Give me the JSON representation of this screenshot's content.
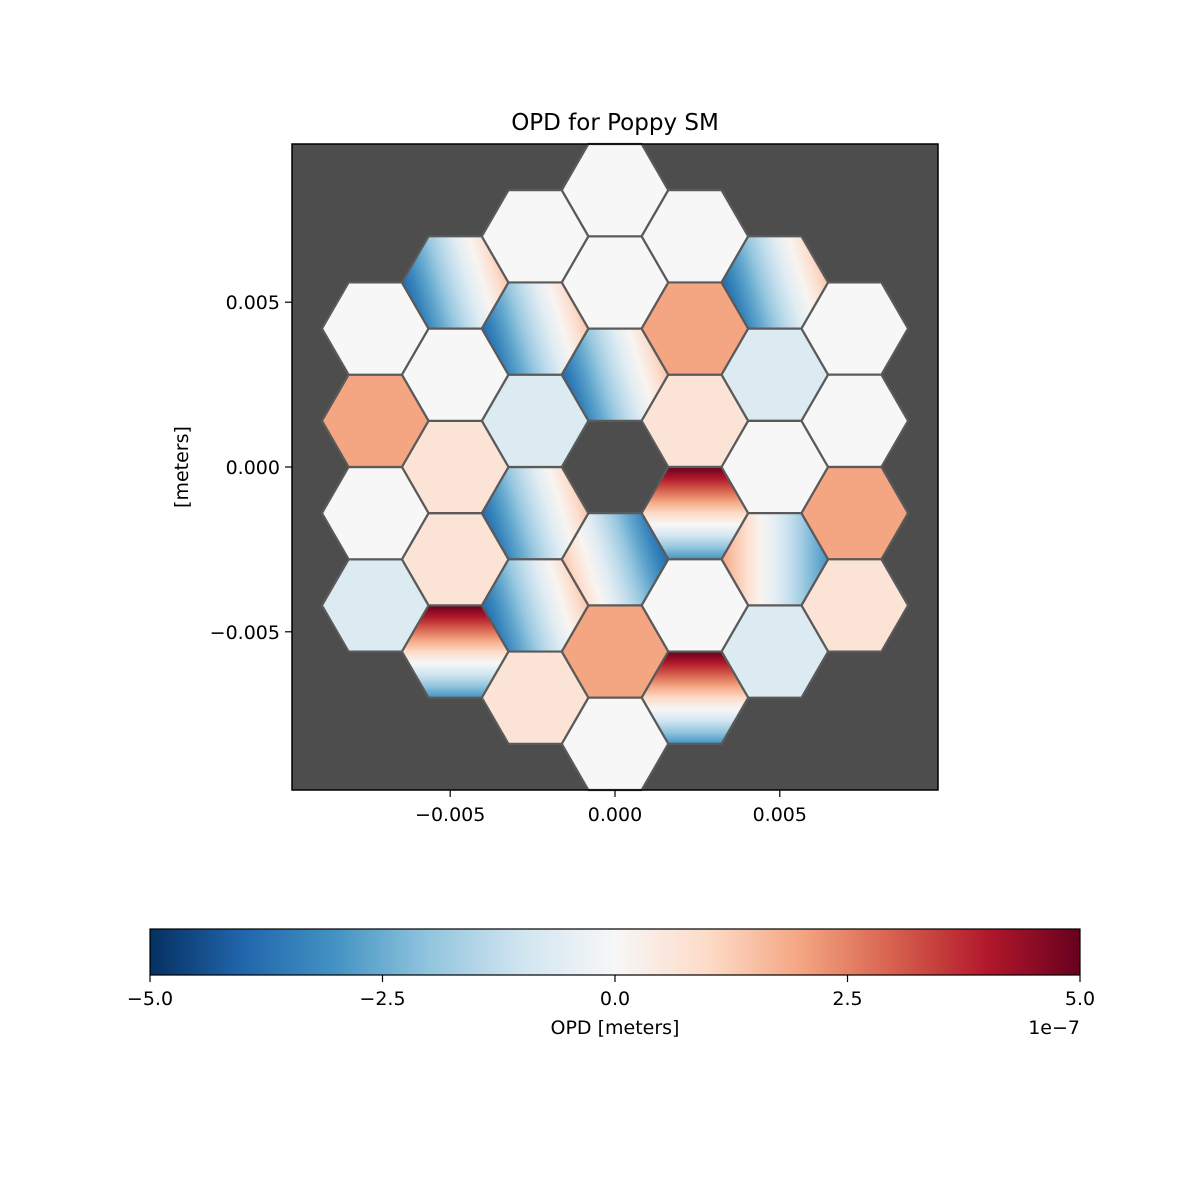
{
  "chart_data": {
    "type": "heatmap",
    "title": "OPD for Poppy SM",
    "xlabel": "",
    "ylabel": "[meters]",
    "xlim": [
      -0.0098,
      0.0098
    ],
    "ylim": [
      -0.0098,
      0.0098
    ],
    "x_ticks": [
      -0.005,
      0.0,
      0.005
    ],
    "y_ticks": [
      0.005,
      0.0,
      -0.005
    ],
    "x_tick_labels": [
      "−0.005",
      "0.000",
      "0.005"
    ],
    "y_tick_labels": [
      "0.005",
      "0.000",
      "−0.005"
    ],
    "background_color": "#4d4d4d",
    "segment_edge_color": "#5a5a5a",
    "colormap": "RdBu_r",
    "colorbar": {
      "label": "OPD [meters]",
      "range": [
        -5e-07,
        5e-07
      ],
      "ticks": [
        -5e-07,
        -2.5e-07,
        0,
        2.5e-07,
        5e-07
      ],
      "tick_labels": [
        "−5.0",
        "−2.5",
        "0.0",
        "2.5",
        "5.0"
      ],
      "offset_text": "1e−7",
      "orientation": "horizontal",
      "placement": "bottom"
    },
    "segment_geometry": {
      "layout": "hexagonal-rings",
      "rings": 3,
      "center_segment": "missing",
      "flat_to_flat": 0.0028,
      "orientation": "flat-top"
    },
    "segments": [
      {
        "q": 0,
        "r": -1,
        "mode": "tilt",
        "opd_a": 1.5e-07,
        "opd_b": 4e-07,
        "angle_deg": 165
      },
      {
        "q": 1,
        "r": -1,
        "mode": "piston",
        "opd": 7e-08
      },
      {
        "q": 1,
        "r": 0,
        "mode": "tip",
        "opd_a": 5e-07,
        "opd_b": -3e-07
      },
      {
        "q": 0,
        "r": 1,
        "mode": "tilt",
        "opd_a": 1.5e-07,
        "opd_b": 4e-07,
        "angle_deg": -15
      },
      {
        "q": -1,
        "r": 1,
        "mode": "tilt",
        "opd_a": 1.5e-07,
        "opd_b": 4e-07,
        "angle_deg": 165
      },
      {
        "q": -1,
        "r": 0,
        "mode": "piston",
        "opd": -7e-08
      },
      {
        "q": 0,
        "r": -2,
        "mode": "piston",
        "opd": 0
      },
      {
        "q": 1,
        "r": -2,
        "mode": "piston",
        "opd": 2e-07
      },
      {
        "q": 2,
        "r": -2,
        "mode": "piston",
        "opd": -7e-08
      },
      {
        "q": 2,
        "r": -1,
        "mode": "piston",
        "opd": 0
      },
      {
        "q": 2,
        "r": 0,
        "mode": "tilt",
        "opd_a": 2e-07,
        "opd_b": 3e-07,
        "angle_deg": 0
      },
      {
        "q": 1,
        "r": 1,
        "mode": "piston",
        "opd": 0
      },
      {
        "q": 0,
        "r": 2,
        "mode": "piston",
        "opd": 2e-07
      },
      {
        "q": -1,
        "r": 2,
        "mode": "tilt",
        "opd_a": 1.5e-07,
        "opd_b": 4e-07,
        "angle_deg": 165
      },
      {
        "q": -2,
        "r": 2,
        "mode": "piston",
        "opd": 7e-08
      },
      {
        "q": -2,
        "r": 1,
        "mode": "piston",
        "opd": 7e-08
      },
      {
        "q": -2,
        "r": 0,
        "mode": "piston",
        "opd": 0
      },
      {
        "q": -1,
        "r": -1,
        "mode": "tilt",
        "opd_a": 1.5e-07,
        "opd_b": 4e-07,
        "angle_deg": 165
      },
      {
        "q": 0,
        "r": -3,
        "mode": "piston",
        "opd": 0
      },
      {
        "q": 1,
        "r": -3,
        "mode": "piston",
        "opd": 0
      },
      {
        "q": 2,
        "r": -3,
        "mode": "tilt",
        "opd_a": 1.5e-07,
        "opd_b": 4e-07,
        "angle_deg": 165
      },
      {
        "q": 3,
        "r": -3,
        "mode": "piston",
        "opd": 0
      },
      {
        "q": 3,
        "r": -2,
        "mode": "piston",
        "opd": 0
      },
      {
        "q": 3,
        "r": -1,
        "mode": "piston",
        "opd": 2e-07
      },
      {
        "q": 3,
        "r": 0,
        "mode": "piston",
        "opd": 7e-08
      },
      {
        "q": 2,
        "r": 1,
        "mode": "piston",
        "opd": -7e-08
      },
      {
        "q": 1,
        "r": 2,
        "mode": "tip",
        "opd_a": 5e-07,
        "opd_b": -3e-07
      },
      {
        "q": 0,
        "r": 3,
        "mode": "piston",
        "opd": 0
      },
      {
        "q": -1,
        "r": 3,
        "mode": "piston",
        "opd": 7e-08
      },
      {
        "q": -2,
        "r": 3,
        "mode": "tip",
        "opd_a": 5e-07,
        "opd_b": -3e-07
      },
      {
        "q": -3,
        "r": 3,
        "mode": "piston",
        "opd": -7e-08
      },
      {
        "q": -3,
        "r": 2,
        "mode": "piston",
        "opd": 0
      },
      {
        "q": -3,
        "r": 1,
        "mode": "piston",
        "opd": 2e-07
      },
      {
        "q": -3,
        "r": 0,
        "mode": "piston",
        "opd": 0
      },
      {
        "q": -2,
        "r": -1,
        "mode": "tilt",
        "opd_a": 1.5e-07,
        "opd_b": 4e-07,
        "angle_deg": 165
      },
      {
        "q": -1,
        "r": -2,
        "mode": "piston",
        "opd": 0
      }
    ]
  }
}
